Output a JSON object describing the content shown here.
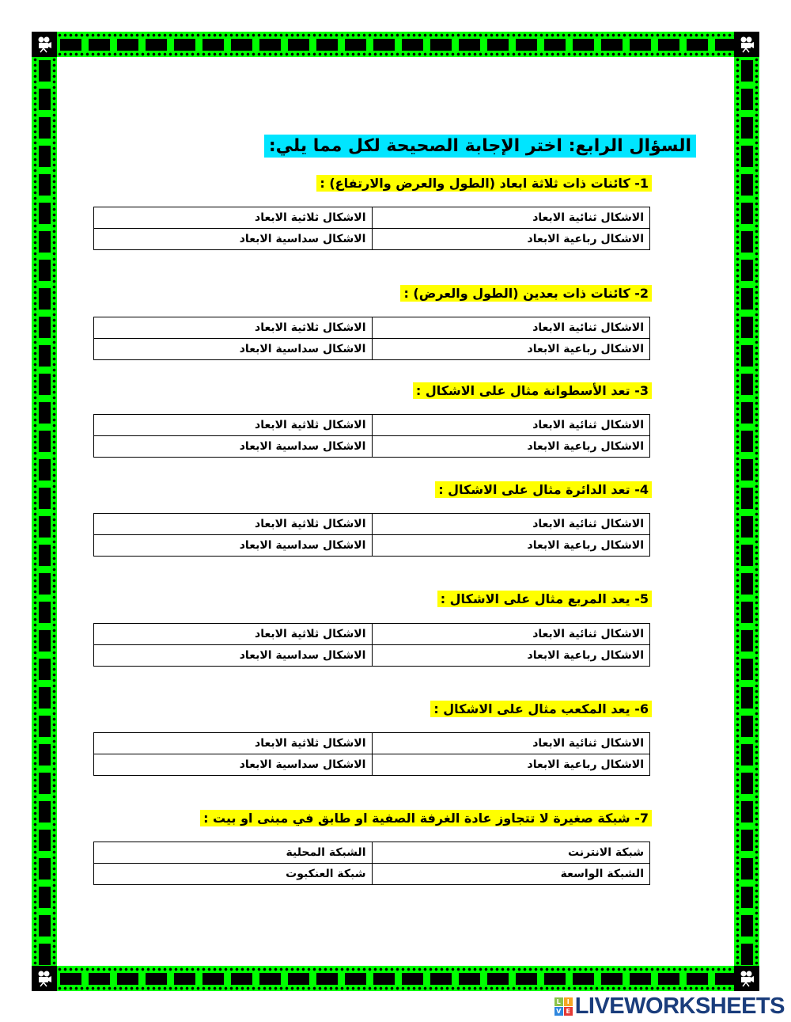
{
  "title": "السؤال الرابع: اختر الإجابة الصحيحة لكل مما يلي:",
  "colors": {
    "border_green": "#00ff00",
    "title_highlight": "#00e5ff",
    "question_highlight": "#ffff00",
    "logo_blue": "#1a3d7c"
  },
  "corner_icon": "movie-camera-icon",
  "questions": [
    {
      "text": "1-  كائنات ذات ثلاثة ابعاد (الطول والعرض والارتفاع) :",
      "options": [
        "الاشكال ثنائية الابعاد",
        "الاشكال ثلاثية الابعاد",
        "الاشكال رباعية الابعاد",
        "الاشكال سداسية الابعاد"
      ]
    },
    {
      "text": "2-  كائنات ذات بعدين (الطول والعرض) :",
      "options": [
        "الاشكال ثنائية الابعاد",
        "الاشكال ثلاثية الابعاد",
        "الاشكال رباعية الابعاد",
        "الاشكال سداسية الابعاد"
      ]
    },
    {
      "text": "3-  تعد الأسطوانة مثال على الاشكال :",
      "options": [
        "الاشكال ثنائية الابعاد",
        "الاشكال ثلاثية الابعاد",
        "الاشكال رباعية الابعاد",
        "الاشكال سداسية الابعاد"
      ]
    },
    {
      "text": "4-  تعد الدائرة مثال على الاشكال :",
      "options": [
        "الاشكال ثنائية الابعاد",
        "الاشكال ثلاثية الابعاد",
        "الاشكال رباعية الابعاد",
        "الاشكال سداسية الابعاد"
      ]
    },
    {
      "text": "5-  يعد المربع مثال على الاشكال :",
      "options": [
        "الاشكال ثنائية الابعاد",
        "الاشكال ثلاثية الابعاد",
        "الاشكال رباعية الابعاد",
        "الاشكال سداسية الابعاد"
      ]
    },
    {
      "text": "6-  يعد المكعب مثال على الاشكال :",
      "options": [
        "الاشكال ثنائية الابعاد",
        "الاشكال ثلاثية الابعاد",
        "الاشكال رباعية الابعاد",
        "الاشكال سداسية الابعاد"
      ]
    },
    {
      "text": "7-  شبكة صغيرة لا تتجاوز عادة الغرفة الصفية او طابق في مبنى او بيت :",
      "options": [
        "شبكة الانترنت",
        "الشبكة المحلية",
        "الشبكة الواسعة",
        "شبكة العنكبوت"
      ]
    }
  ],
  "logo": {
    "text": "LIVEWORKSHEETS",
    "letters": [
      "L",
      "I",
      "V",
      "E"
    ]
  }
}
